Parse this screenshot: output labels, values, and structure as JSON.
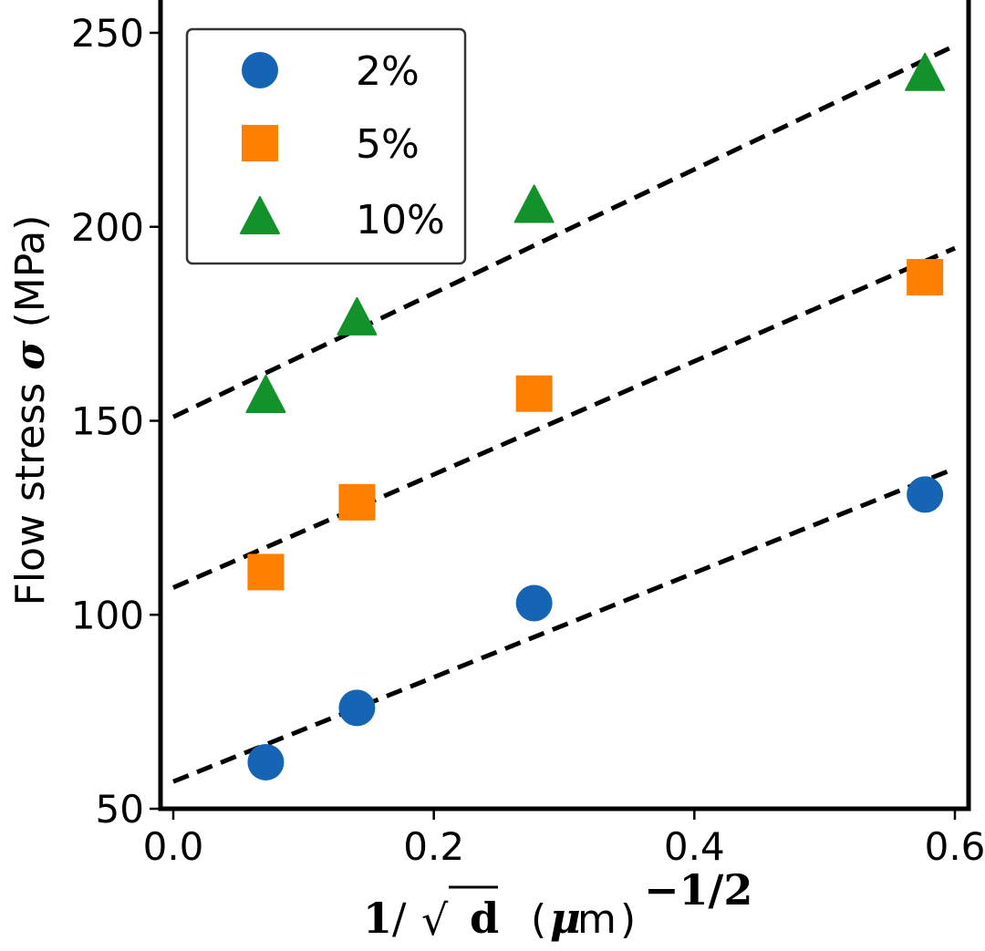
{
  "chart_data": {
    "type": "scatter",
    "title": "",
    "xlabel": {
      "numerator": "1",
      "slash": "/",
      "sqrt_symbol": "√",
      "variable": "d",
      "unit_open": "(",
      "unit_mu": "μ",
      "unit_m": "m",
      "unit_close": ")",
      "exponent": "−1/2"
    },
    "ylabel": {
      "prefix": "Flow stress ",
      "symbol": "σ",
      "unit": " (MPa)"
    },
    "xlim": [
      0.0,
      0.6
    ],
    "ylim": [
      50,
      250
    ],
    "xticks": [
      0.0,
      0.2,
      0.4,
      0.6
    ],
    "xtick_labels": [
      "0.0",
      "0.2",
      "0.4",
      "0.6"
    ],
    "yticks": [
      50,
      100,
      150,
      200,
      250
    ],
    "ytick_labels": [
      "50",
      "100",
      "150",
      "200",
      "250"
    ],
    "grid": false,
    "legend_position": "top-left",
    "series": [
      {
        "name": "2%",
        "marker": "circle",
        "color": "#1565b4",
        "x": [
          0.071,
          0.141,
          0.277,
          0.577
        ],
        "y": [
          62,
          76,
          103,
          131
        ],
        "fit": {
          "style": "dashed",
          "color": "#000000",
          "x": [
            0.0,
            0.6
          ],
          "y": [
            57,
            137.7
          ]
        }
      },
      {
        "name": "5%",
        "marker": "square",
        "color": "#ff8000",
        "x": [
          0.071,
          0.141,
          0.277,
          0.577
        ],
        "y": [
          111,
          129,
          157,
          187
        ],
        "fit": {
          "style": "dashed",
          "color": "#000000",
          "x": [
            0.0,
            0.6
          ],
          "y": [
            107,
            194.5
          ]
        }
      },
      {
        "name": "10%",
        "marker": "triangle",
        "color": "#13912a",
        "x": [
          0.071,
          0.141,
          0.277,
          0.577
        ],
        "y": [
          156,
          176,
          205,
          239
        ],
        "fit": {
          "style": "dashed",
          "color": "#000000",
          "x": [
            0.0,
            0.6
          ],
          "y": [
            151,
            246.7
          ]
        }
      }
    ]
  }
}
